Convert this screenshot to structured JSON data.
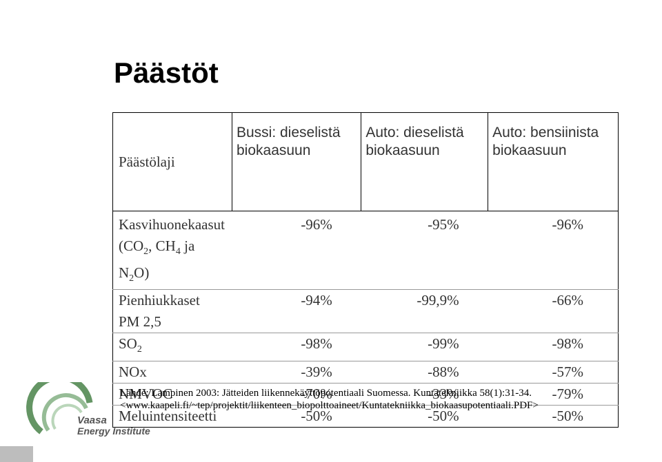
{
  "header": {
    "title": "Päästöt"
  },
  "table": {
    "columns": [
      "Päästölaji",
      "Bussi: dieselistä biokaasuun",
      "Auto: dieselistä biokaasuun",
      "Auto: bensiinista biokaasuun"
    ],
    "rows": [
      [
        [
          {
            "text": "Kasvihuonekaasut"
          },
          {
            "break": "(CO"
          },
          {
            "sub": "2"
          },
          {
            "text": ", CH"
          },
          {
            "sub": "4"
          },
          {
            "text": " ja N"
          },
          {
            "sub": "2"
          },
          {
            "text": "O)"
          }
        ],
        "-96%",
        "-95%",
        "-96%"
      ],
      [
        [
          {
            "text": "Pienhiukkaset"
          },
          {
            "break": "PM 2,5"
          }
        ],
        "-94%",
        "-99,9%",
        "-66%"
      ],
      [
        [
          {
            "text": "SO"
          },
          {
            "sub": "2"
          }
        ],
        "-98%",
        "-99%",
        "-98%"
      ],
      [
        [
          {
            "text": "NOx"
          }
        ],
        "-39%",
        "-88%",
        "-57%"
      ],
      [
        [
          {
            "text": "NMVOC"
          }
        ],
        "-70%",
        "-33%",
        "-79%"
      ],
      [
        [
          {
            "text": "Meluintensiteetti"
          }
        ],
        "-50%",
        "-50%",
        "-50%"
      ]
    ]
  },
  "source": [
    "Lähde: Lampinen 2003: Jätteiden liikennekäyttöpotentiaali Suomessa. Kuntatekniikka 58(1):31-34.",
    "<www.kaapeli.fi/~tep/projektit/liikenteen_biopolttoaineet/Kuntatekniikka_biokaasupotentiaali.PDF>"
  ],
  "logo": {
    "line1": "Vaasa",
    "line2": "Energy Institute"
  }
}
